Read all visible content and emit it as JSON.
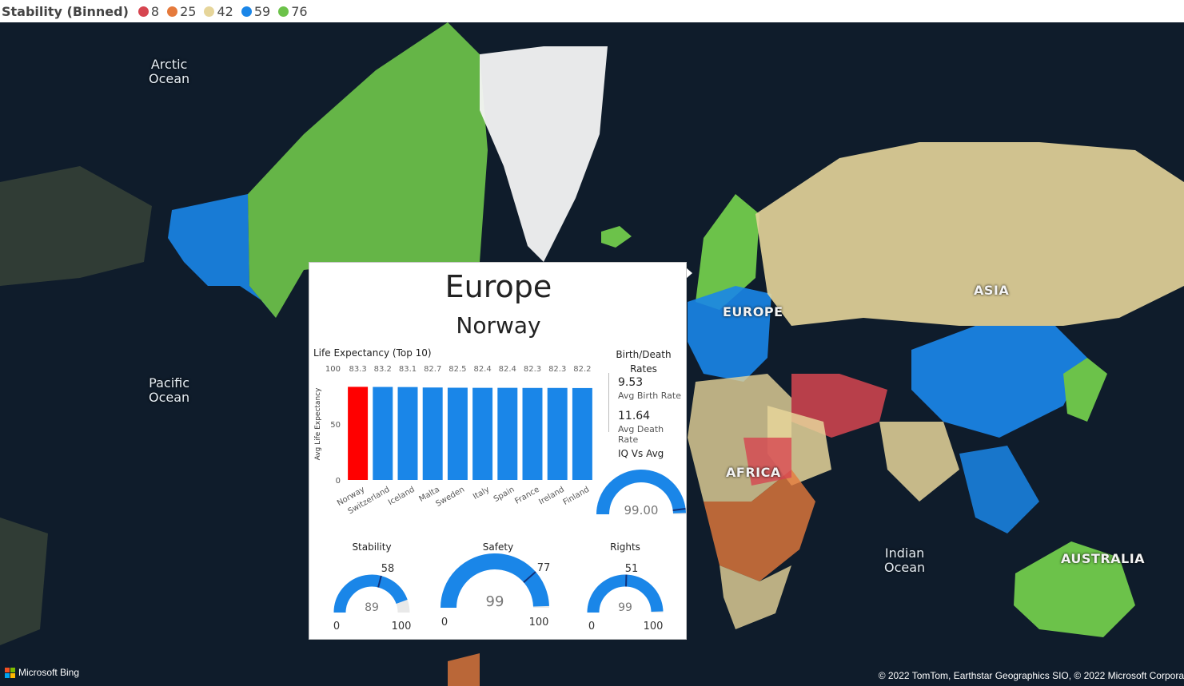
{
  "legend": {
    "title": "Stability (Binned)",
    "items": [
      {
        "label": "8",
        "color": "#d64550"
      },
      {
        "label": "25",
        "color": "#e57a3c"
      },
      {
        "label": "42",
        "color": "#e6d59a"
      },
      {
        "label": "59",
        "color": "#1a86e8"
      },
      {
        "label": "76",
        "color": "#6cc24a"
      }
    ]
  },
  "map": {
    "oceans": {
      "arctic": "Arctic\nOcean",
      "pacific": "Pacific\nOcean",
      "indian": "Indian\nOcean"
    },
    "continents": {
      "europe": "EUROPE",
      "asia": "ASIA",
      "africa": "AFRICA",
      "australia": "AUSTRALIA"
    },
    "bing": "Microsoft Bing",
    "attribution": "© 2022 TomTom, Earthstar Geographics SIO, © 2022 Microsoft Corpora"
  },
  "tooltip": {
    "region": "Europe",
    "country": "Norway",
    "life_chart_title": "Life Expectancy (Top 10)",
    "birth_death_title": "Birth/Death Rates",
    "birth_rate": "9.53",
    "birth_label": "Avg Birth Rate",
    "death_rate": "11.64",
    "death_label": "Avg Death Rate",
    "iq_title": "IQ Vs Avg",
    "gauges": {
      "iq": {
        "value": "99.00",
        "min": "",
        "max": "",
        "target": ""
      },
      "stability": {
        "title": "Stability",
        "value": "89",
        "min": "0",
        "max": "100",
        "target": "58"
      },
      "safety": {
        "title": "Safety",
        "value": "99",
        "min": "0",
        "max": "100",
        "target": "77"
      },
      "rights": {
        "title": "Rights",
        "value": "99",
        "min": "0",
        "max": "100",
        "target": "51"
      }
    },
    "gauge_levels": {
      "iq": {
        "value": 99,
        "min": 0,
        "max": 100,
        "target": 96
      },
      "stability": {
        "value": 89,
        "min": 0,
        "max": 100,
        "target": 58
      },
      "safety": {
        "value": 99,
        "min": 0,
        "max": 100,
        "target": 77
      },
      "rights": {
        "value": 99,
        "min": 0,
        "max": 100,
        "target": 51
      }
    },
    "highlight_color": "#ff0000",
    "bar_color": "#1a86e8"
  },
  "chart_data": {
    "type": "bar",
    "title": "Life Expectancy (Top 10)",
    "xlabel": "",
    "ylabel": "Avg Life Expectancy",
    "ylim": [
      0,
      100
    ],
    "yticks": [
      "0",
      "50",
      "100"
    ],
    "categories": [
      "Norway",
      "Switzerland",
      "Iceland",
      "Malta",
      "Sweden",
      "Italy",
      "Spain",
      "France",
      "Ireland",
      "Finland"
    ],
    "values": [
      83.3,
      83.2,
      83.1,
      82.7,
      82.5,
      82.4,
      82.4,
      82.3,
      82.3,
      82.2
    ],
    "value_labels": [
      "83.3",
      "83.2",
      "83.1",
      "82.7",
      "82.5",
      "82.4",
      "82.4",
      "82.3",
      "82.3",
      "82.2"
    ],
    "highlight_index": 0
  }
}
